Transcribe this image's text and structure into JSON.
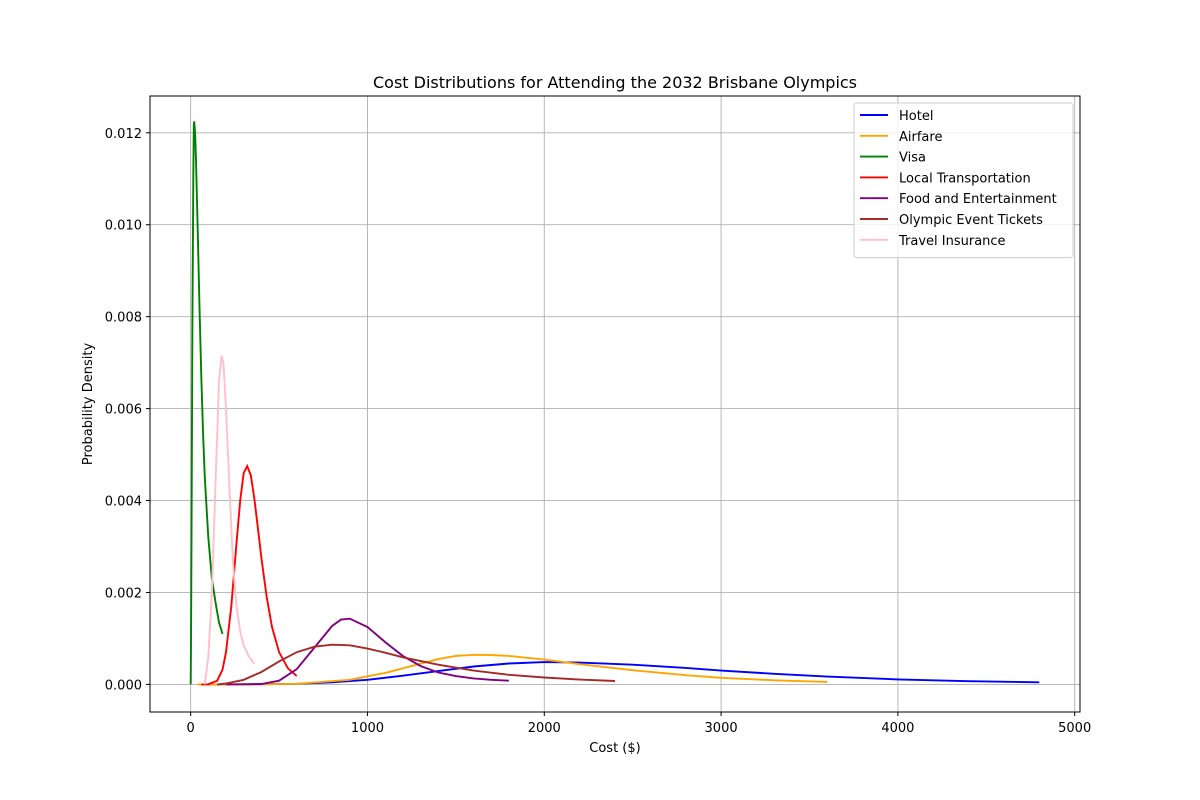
{
  "chart_data": {
    "type": "line",
    "title": "Cost Distributions for Attending the 2032 Brisbane Olympics",
    "xlabel": "Cost ($)",
    "ylabel": "Probability Density",
    "xlim": [
      -230,
      5030
    ],
    "ylim": [
      -0.0006,
      0.0128
    ],
    "x_ticks": [
      0,
      1000,
      2000,
      3000,
      4000,
      5000
    ],
    "x_tick_labels": [
      "0",
      "1000",
      "2000",
      "3000",
      "4000",
      "5000"
    ],
    "y_ticks": [
      0.0,
      0.002,
      0.004,
      0.006,
      0.008,
      0.01,
      0.012
    ],
    "y_tick_labels": [
      "0.000",
      "0.002",
      "0.004",
      "0.006",
      "0.008",
      "0.010",
      "0.012"
    ],
    "grid": true,
    "legend_position": "upper right",
    "series": [
      {
        "name": "Hotel",
        "color": "#0000ff",
        "x": [
          60,
          300,
          600,
          800,
          1000,
          1200,
          1400,
          1600,
          1800,
          2000,
          2200,
          2500,
          2800,
          3000,
          3300,
          3600,
          4000,
          4400,
          4800
        ],
        "y": [
          0.0,
          5e-07,
          1.4e-05,
          4.5e-05,
          0.0001,
          0.00019,
          0.00029,
          0.00039,
          0.000455,
          0.000485,
          0.000475,
          0.00043,
          0.00036,
          0.0003,
          0.00023,
          0.00017,
          0.00011,
          7e-05,
          4.5e-05
        ]
      },
      {
        "name": "Airfare",
        "color": "#ffa500",
        "x": [
          40,
          300,
          600,
          900,
          1100,
          1300,
          1400,
          1500,
          1600,
          1700,
          1800,
          2000,
          2200,
          2500,
          2800,
          3000,
          3300,
          3600
        ],
        "y": [
          0.0,
          5e-07,
          1.4e-05,
          0.0001,
          0.00025,
          0.00045,
          0.00055,
          0.00062,
          0.000645,
          0.00064,
          0.00062,
          0.00054,
          0.00044,
          0.00031,
          0.0002,
          0.000145,
          9e-05,
          5.5e-05
        ]
      },
      {
        "name": "Visa",
        "color": "#008000",
        "x": [
          0,
          2,
          5,
          10,
          15,
          18,
          20,
          25,
          30,
          40,
          50,
          60,
          70,
          80,
          100,
          120,
          140,
          160,
          180
        ],
        "y": [
          0.0,
          0.0009,
          0.0032,
          0.0078,
          0.011,
          0.01215,
          0.01225,
          0.012,
          0.0114,
          0.0099,
          0.0082,
          0.0067,
          0.0055,
          0.0045,
          0.0032,
          0.0023,
          0.0018,
          0.00135,
          0.0011
        ]
      },
      {
        "name": "Local Transportation",
        "color": "#ff0000",
        "x": [
          60,
          100,
          150,
          180,
          200,
          230,
          260,
          280,
          300,
          320,
          340,
          360,
          380,
          400,
          430,
          460,
          500,
          550,
          600
        ],
        "y": [
          0.0,
          3e-06,
          8e-05,
          0.00032,
          0.0007,
          0.0017,
          0.0031,
          0.004,
          0.0046,
          0.00475,
          0.00455,
          0.00405,
          0.0034,
          0.00275,
          0.0019,
          0.00125,
          0.0007,
          0.00035,
          0.00018
        ]
      },
      {
        "name": "Food and Entertainment",
        "color": "#800080",
        "x": [
          200,
          400,
          500,
          600,
          700,
          800,
          850,
          900,
          1000,
          1100,
          1200,
          1300,
          1400,
          1500,
          1600,
          1700,
          1800
        ],
        "y": [
          0.0,
          1e-05,
          8e-05,
          0.00033,
          0.0008,
          0.00127,
          0.00141,
          0.00143,
          0.00125,
          0.00092,
          0.00062,
          0.0004,
          0.00026,
          0.00018,
          0.00013,
          0.0001,
          8e-05
        ]
      },
      {
        "name": "Olympic Event Tickets",
        "color": "#a52a2a",
        "x": [
          150,
          200,
          300,
          400,
          500,
          600,
          700,
          800,
          900,
          1000,
          1100,
          1200,
          1400,
          1600,
          1800,
          2000,
          2200,
          2400
        ],
        "y": [
          0.0,
          2e-05,
          0.0001,
          0.00027,
          0.0005,
          0.0007,
          0.00082,
          0.000865,
          0.00085,
          0.00078,
          0.00069,
          0.00059,
          0.00043,
          0.0003,
          0.00021,
          0.00015,
          0.000105,
          7.5e-05
        ]
      },
      {
        "name": "Travel Insurance",
        "color": "#ffc0cb",
        "x": [
          80,
          100,
          120,
          140,
          160,
          175,
          185,
          200,
          220,
          240,
          260,
          280,
          300,
          330,
          360
        ],
        "y": [
          0.0,
          0.0006,
          0.002,
          0.0043,
          0.0066,
          0.00715,
          0.007,
          0.006,
          0.0042,
          0.0026,
          0.0017,
          0.00115,
          0.00085,
          0.0006,
          0.00045
        ]
      }
    ]
  }
}
